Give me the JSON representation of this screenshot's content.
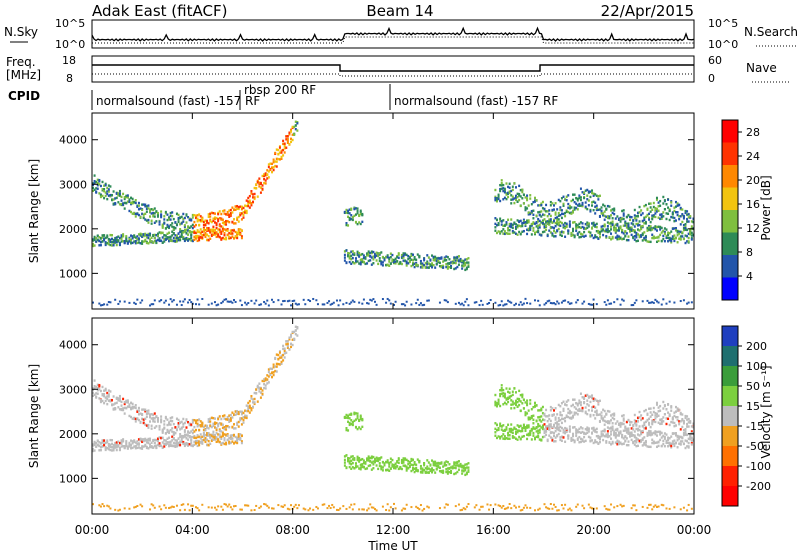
{
  "header": {
    "site": "Adak East (fitACF)",
    "beam": "Beam 14",
    "date": "22/Apr/2015"
  },
  "panels": {
    "noise": {
      "left_label": "N.Sky",
      "right_label": "N.Search",
      "left_ticks": [
        "10^5",
        "10^0"
      ],
      "right_ticks": [
        "10^5",
        "10^0"
      ]
    },
    "freq": {
      "left_label_top": "Freq.",
      "left_label_bot": "[MHz]",
      "left_ticks": [
        "18",
        "8"
      ],
      "right_label": "Nave",
      "right_ticks": [
        "60",
        "0"
      ]
    },
    "cpid": {
      "label": "CPID",
      "segments": [
        "normalsound (fast) -157 RF",
        "rbsp 200 RF",
        "normalsound (fast) -157 RF"
      ]
    }
  },
  "chart_data": [
    {
      "type": "heatmap",
      "title": "",
      "ylabel": "Slant Range [km]",
      "xlabel": "",
      "x_ticks": [
        "00:00",
        "04:00",
        "08:00",
        "12:00",
        "16:00",
        "20:00",
        "00:00"
      ],
      "y_ticks": [
        1000,
        2000,
        3000,
        4000
      ],
      "ylim": [
        200,
        4600
      ],
      "colorbar": {
        "label": "Power [dB]",
        "ticks": [
          4,
          8,
          12,
          16,
          20,
          24,
          28
        ],
        "range": [
          0,
          30
        ],
        "colors": [
          "#0000ff",
          "#2255aa",
          "#2e8b57",
          "#7fbf3f",
          "#f2c40f",
          "#ff8800",
          "#ff3300",
          "#ff0000"
        ]
      }
    },
    {
      "type": "heatmap",
      "title": "",
      "ylabel": "Slant Range [km]",
      "xlabel": "Time UT",
      "x_ticks": [
        "00:00",
        "04:00",
        "08:00",
        "12:00",
        "16:00",
        "20:00",
        "00:00"
      ],
      "y_ticks": [
        1000,
        2000,
        3000,
        4000
      ],
      "ylim": [
        200,
        4600
      ],
      "colorbar": {
        "label": "Velocity [m s⁻¹]",
        "ticks": [
          "200",
          "100",
          "50",
          "15",
          "-15",
          "-50",
          "-100",
          "-200"
        ],
        "colors": [
          "#1f3fbf",
          "#1f6f6f",
          "#3a9d3a",
          "#7ccf3f",
          "#bdbdbd",
          "#f0a020",
          "#ff7000",
          "#ff2000",
          "#ff0000"
        ]
      }
    }
  ]
}
